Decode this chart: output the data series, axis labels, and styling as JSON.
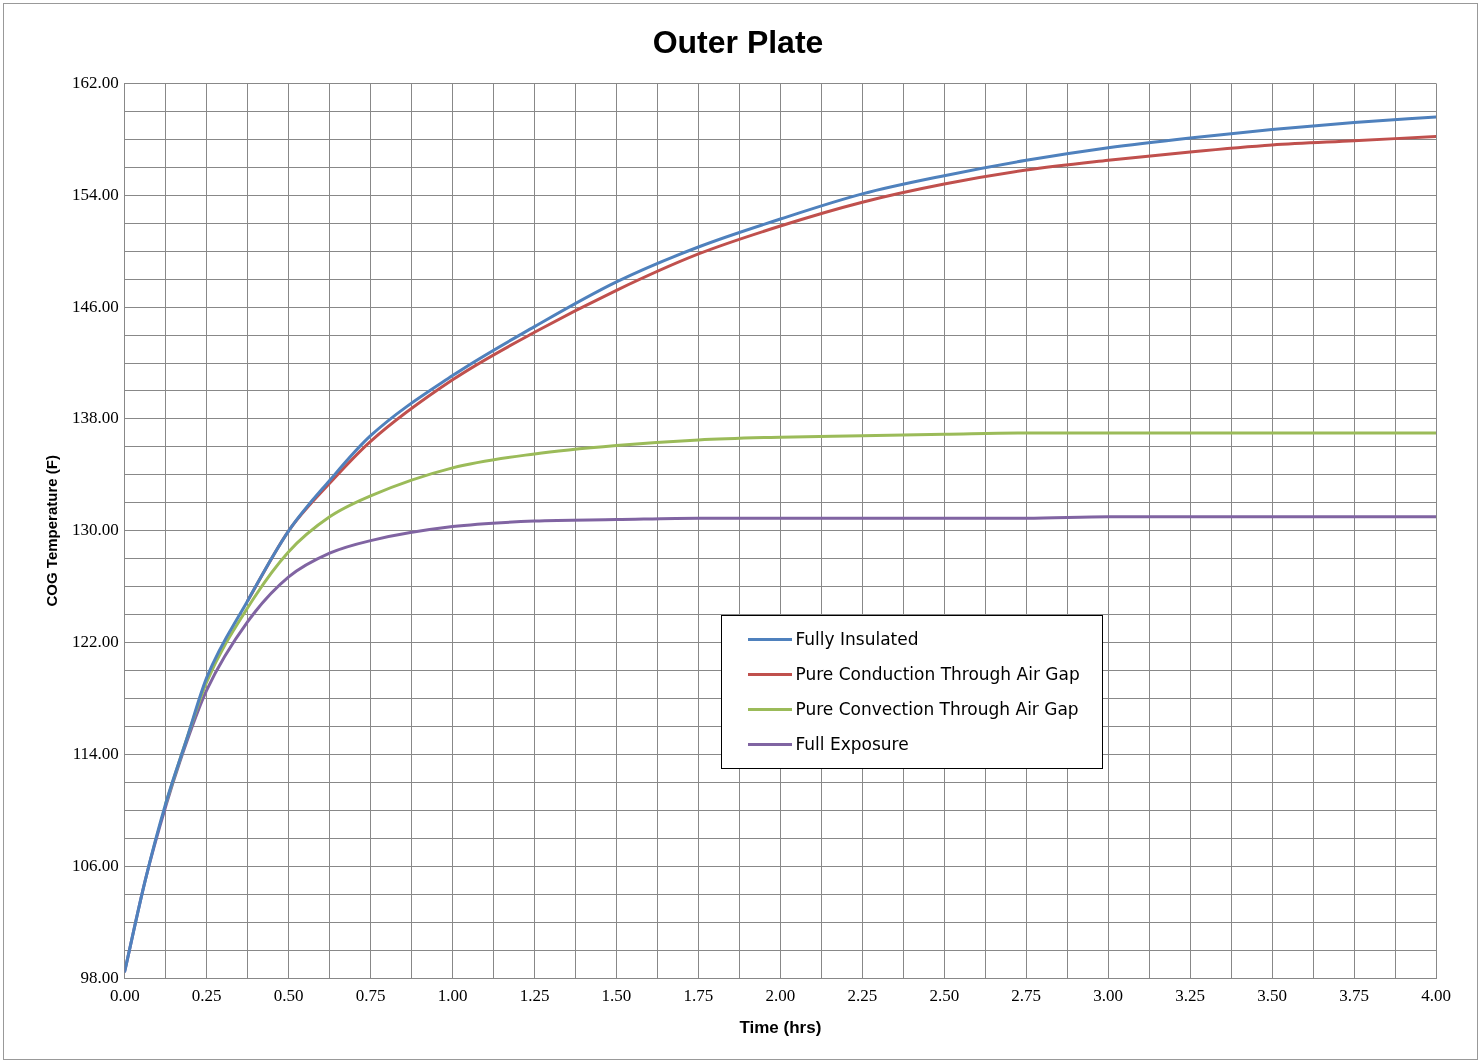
{
  "chart_data": {
    "type": "line",
    "title": "Outer Plate",
    "xlabel": "Time (hrs)",
    "ylabel": "COG Temperature (F)",
    "xlim": [
      0,
      4
    ],
    "ylim": [
      98,
      162
    ],
    "xticks": [
      {
        "value": 0,
        "label": "0.00"
      },
      {
        "value": 0.125,
        "label": null
      },
      {
        "value": 0.25,
        "label": "0.25"
      },
      {
        "value": 0.375,
        "label": null
      },
      {
        "value": 0.5,
        "label": "0.50"
      },
      {
        "value": 0.625,
        "label": null
      },
      {
        "value": 0.75,
        "label": "0.75"
      },
      {
        "value": 0.875,
        "label": null
      },
      {
        "value": 1,
        "label": "1.00"
      },
      {
        "value": 1.125,
        "label": null
      },
      {
        "value": 1.25,
        "label": "1.25"
      },
      {
        "value": 1.375,
        "label": null
      },
      {
        "value": 1.5,
        "label": "1.50"
      },
      {
        "value": 1.625,
        "label": null
      },
      {
        "value": 1.75,
        "label": "1.75"
      },
      {
        "value": 1.875,
        "label": null
      },
      {
        "value": 2,
        "label": "2.00"
      },
      {
        "value": 2.125,
        "label": null
      },
      {
        "value": 2.25,
        "label": "2.25"
      },
      {
        "value": 2.375,
        "label": null
      },
      {
        "value": 2.5,
        "label": "2.50"
      },
      {
        "value": 2.625,
        "label": null
      },
      {
        "value": 2.75,
        "label": "2.75"
      },
      {
        "value": 2.875,
        "label": null
      },
      {
        "value": 3,
        "label": "3.00"
      },
      {
        "value": 3.125,
        "label": null
      },
      {
        "value": 3.25,
        "label": "3.25"
      },
      {
        "value": 3.375,
        "label": null
      },
      {
        "value": 3.5,
        "label": "3.50"
      },
      {
        "value": 3.625,
        "label": null
      },
      {
        "value": 3.75,
        "label": "3.75"
      },
      {
        "value": 3.875,
        "label": null
      },
      {
        "value": 4,
        "label": "4.00"
      }
    ],
    "yticks": [
      {
        "value": 98,
        "label": "98.00"
      },
      {
        "value": 100,
        "label": null
      },
      {
        "value": 102,
        "label": null
      },
      {
        "value": 104,
        "label": null
      },
      {
        "value": 106,
        "label": "106.00"
      },
      {
        "value": 108,
        "label": null
      },
      {
        "value": 110,
        "label": null
      },
      {
        "value": 112,
        "label": null
      },
      {
        "value": 114,
        "label": "114.00"
      },
      {
        "value": 116,
        "label": null
      },
      {
        "value": 118,
        "label": null
      },
      {
        "value": 120,
        "label": null
      },
      {
        "value": 122,
        "label": "122.00"
      },
      {
        "value": 124,
        "label": null
      },
      {
        "value": 126,
        "label": null
      },
      {
        "value": 128,
        "label": null
      },
      {
        "value": 130,
        "label": "130.00"
      },
      {
        "value": 132,
        "label": null
      },
      {
        "value": 134,
        "label": null
      },
      {
        "value": 136,
        "label": null
      },
      {
        "value": 138,
        "label": "138.00"
      },
      {
        "value": 140,
        "label": null
      },
      {
        "value": 142,
        "label": null
      },
      {
        "value": 144,
        "label": null
      },
      {
        "value": 146,
        "label": "146.00"
      },
      {
        "value": 148,
        "label": null
      },
      {
        "value": 150,
        "label": null
      },
      {
        "value": 152,
        "label": null
      },
      {
        "value": 154,
        "label": "154.00"
      },
      {
        "value": 156,
        "label": null
      },
      {
        "value": 158,
        "label": null
      },
      {
        "value": 160,
        "label": null
      },
      {
        "value": 162,
        "label": "162.00"
      }
    ],
    "grid": true,
    "legend": "center",
    "marker": "none",
    "line_style": "solid",
    "x": [
      0,
      0.0625,
      0.125,
      0.1875,
      0.25,
      0.375,
      0.5,
      0.625,
      0.75,
      1,
      1.25,
      1.5,
      1.75,
      2,
      2.25,
      2.5,
      2.75,
      3,
      3.25,
      3.5,
      3.75,
      4
    ],
    "series": [
      {
        "name": "Fully Insulated",
        "color": "#4f81bd",
        "values": [
          98.5,
          105,
          110.5,
          115,
          119.5,
          125,
          130,
          133.6,
          136.8,
          141.1,
          144.6,
          147.8,
          150.3,
          152.3,
          154.1,
          155.4,
          156.5,
          157.4,
          158.1,
          158.7,
          159.2,
          159.6
        ]
      },
      {
        "name": "Pure Conduction Through Air Gap",
        "color": "#c0504d",
        "values": [
          null,
          null,
          null,
          null,
          null,
          125,
          130,
          133.4,
          136.4,
          140.8,
          144.2,
          147.2,
          149.8,
          151.8,
          153.5,
          154.8,
          155.8,
          156.5,
          157.1,
          157.6,
          157.9,
          158.2
        ]
      },
      {
        "name": "Pure Convection Through Air Gap",
        "color": "#9bbb59",
        "values": [
          null,
          null,
          110.5,
          115,
          119.2,
          124.5,
          128.5,
          131,
          132.5,
          134.5,
          135.5,
          136.1,
          136.5,
          136.7,
          136.8,
          136.9,
          137,
          137,
          137,
          137,
          137,
          137
        ]
      },
      {
        "name": "Full Exposure",
        "color": "#8064a2",
        "values": [
          98.5,
          105,
          110.3,
          114.8,
          118.6,
          123.5,
          126.7,
          128.4,
          129.3,
          130.3,
          130.7,
          130.8,
          130.9,
          130.9,
          130.9,
          130.9,
          130.9,
          131,
          131,
          131,
          131,
          131
        ]
      }
    ]
  }
}
